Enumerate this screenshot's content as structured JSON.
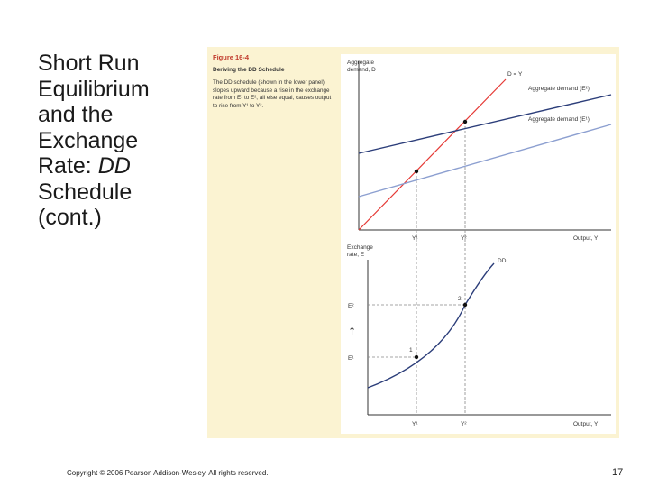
{
  "slide": {
    "title_parts": [
      "Short Run",
      "Equilibrium",
      "and the",
      "Exchange",
      "Rate: ",
      "DD",
      "Schedule",
      "(cont.)"
    ],
    "footer": "Copyright © 2006 Pearson Addison-Wesley. All rights reserved.",
    "page_number": "17"
  },
  "figure": {
    "number": "Figure 16-4",
    "title": "Deriving the DD Schedule",
    "caption": "The DD schedule (shown in the lower panel) slopes upward because a rise in the exchange rate from E¹ to E², all else equal, causes output to rise from Y¹ to Y²."
  },
  "chart_data": [
    {
      "type": "line",
      "panel": "upper",
      "ylabel_line1": "Aggregate",
      "ylabel_line2": "demand, D",
      "xlabel": "Output, Y",
      "x_ticks": [
        "Y¹",
        "Y²"
      ],
      "series": [
        {
          "name": "D = Y",
          "color": "#e53935"
        },
        {
          "name": "Aggregate demand (E²)",
          "color": "#2c3e7a"
        },
        {
          "name": "Aggregate demand (E¹)",
          "color": "#8c9fd0"
        }
      ]
    },
    {
      "type": "line",
      "panel": "lower",
      "ylabel_line1": "Exchange",
      "ylabel_line2": "rate, E",
      "xlabel": "Output, Y",
      "x_ticks": [
        "Y¹",
        "Y²"
      ],
      "y_ticks": [
        "E²",
        "E¹"
      ],
      "series": [
        {
          "name": "DD",
          "color": "#2c3e7a"
        }
      ],
      "points": [
        {
          "label": "1",
          "x": "Y¹",
          "y": "E¹"
        },
        {
          "label": "2",
          "x": "Y²",
          "y": "E²"
        }
      ],
      "arrow": "↑"
    }
  ]
}
